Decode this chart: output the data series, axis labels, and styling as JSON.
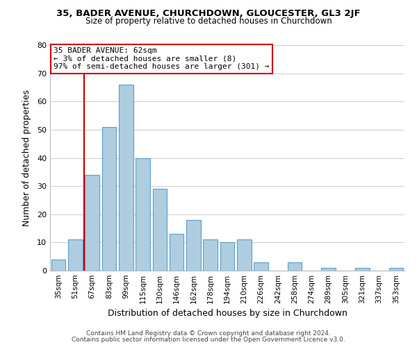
{
  "title": "35, BADER AVENUE, CHURCHDOWN, GLOUCESTER, GL3 2JF",
  "subtitle": "Size of property relative to detached houses in Churchdown",
  "xlabel": "Distribution of detached houses by size in Churchdown",
  "ylabel": "Number of detached properties",
  "bar_labels": [
    "35sqm",
    "51sqm",
    "67sqm",
    "83sqm",
    "99sqm",
    "115sqm",
    "130sqm",
    "146sqm",
    "162sqm",
    "178sqm",
    "194sqm",
    "210sqm",
    "226sqm",
    "242sqm",
    "258sqm",
    "274sqm",
    "289sqm",
    "305sqm",
    "321sqm",
    "337sqm",
    "353sqm"
  ],
  "bar_heights": [
    4,
    11,
    34,
    51,
    66,
    40,
    29,
    13,
    18,
    11,
    10,
    11,
    3,
    0,
    3,
    0,
    1,
    0,
    1,
    0,
    1
  ],
  "bar_color": "#aecde1",
  "bar_edge_color": "#5b9dc9",
  "highlight_line_color": "#cc0000",
  "annotation_title": "35 BADER AVENUE: 62sqm",
  "annotation_line1": "← 3% of detached houses are smaller (8)",
  "annotation_line2": "97% of semi-detached houses are larger (301) →",
  "annotation_box_color": "#ffffff",
  "annotation_box_edge": "#cc0000",
  "footer1": "Contains HM Land Registry data © Crown copyright and database right 2024.",
  "footer2": "Contains public sector information licensed under the Open Government Licence v3.0.",
  "ylim": [
    0,
    80
  ],
  "yticks": [
    0,
    10,
    20,
    30,
    40,
    50,
    60,
    70,
    80
  ],
  "background_color": "#ffffff",
  "grid_color": "#cccccc"
}
